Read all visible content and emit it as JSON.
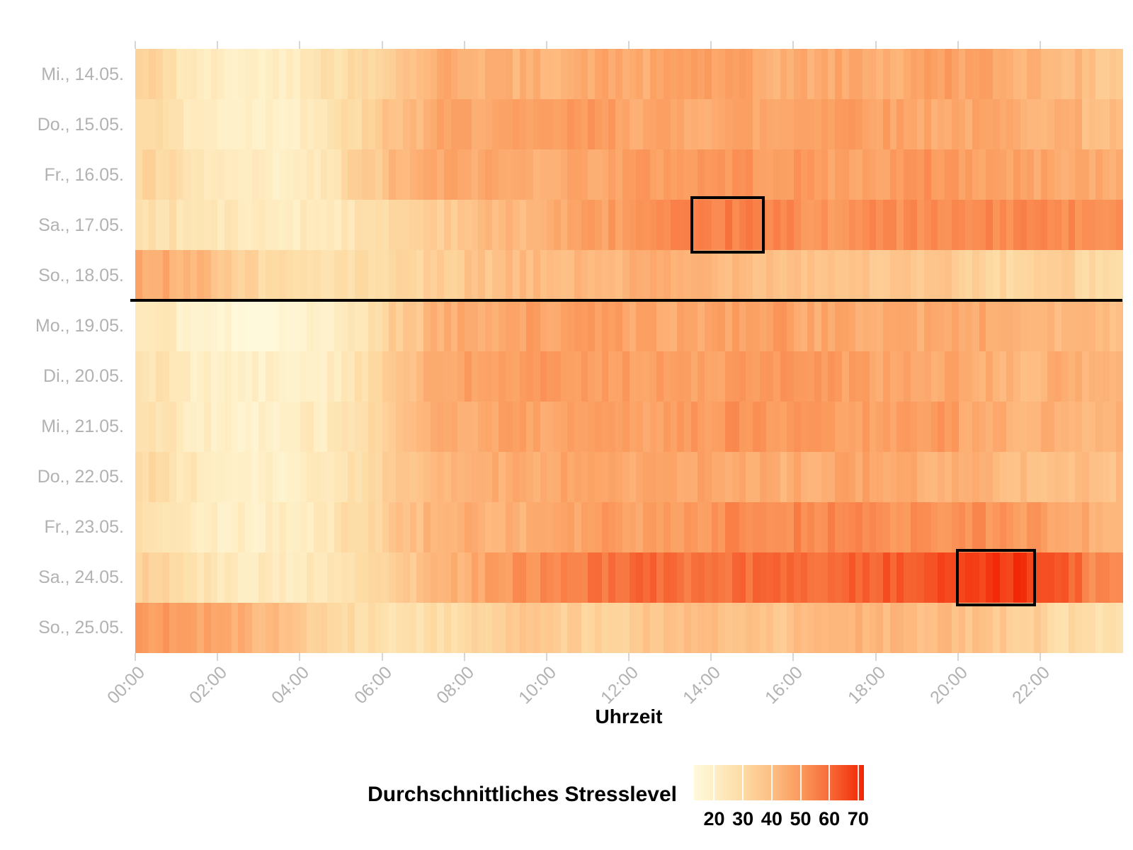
{
  "chart_data": {
    "type": "heatmap",
    "xlabel": "Uhrzeit",
    "legend_title": "Durchschnittliches Stresslevel",
    "x_ticks": [
      "00:00",
      "02:00",
      "04:00",
      "06:00",
      "08:00",
      "10:00",
      "12:00",
      "14:00",
      "16:00",
      "18:00",
      "20:00",
      "22:00"
    ],
    "days": [
      "Mi., 14.05.",
      "Do., 15.05.",
      "Fr., 16.05.",
      "Sa., 17.05.",
      "So., 18.05.",
      "Mo., 19.05.",
      "Di., 20.05.",
      "Mi., 21.05.",
      "Do., 22.05.",
      "Fr., 23.05.",
      "Sa., 24.05.",
      "So., 25.05."
    ],
    "hours_per_row": 24,
    "value_range": [
      13,
      72
    ],
    "legend_ticks": [
      20,
      30,
      40,
      50,
      60,
      70
    ],
    "colorscale": [
      {
        "value": 13,
        "color": "#FFF9DC"
      },
      {
        "value": 20,
        "color": "#FEEFC6"
      },
      {
        "value": 30,
        "color": "#FDDBA4"
      },
      {
        "value": 40,
        "color": "#FDBE84"
      },
      {
        "value": 50,
        "color": "#FB9A5D"
      },
      {
        "value": 60,
        "color": "#F76B38"
      },
      {
        "value": 70,
        "color": "#F3300C"
      },
      {
        "value": 72,
        "color": "#F22405"
      }
    ],
    "values": [
      [
        32,
        22,
        20,
        21,
        28,
        30,
        38,
        45,
        44,
        43,
        44,
        46,
        45,
        49,
        47,
        44,
        45,
        46,
        44,
        49,
        47,
        44,
        42,
        37
      ],
      [
        30,
        22,
        20,
        20,
        24,
        31,
        40,
        46,
        47,
        46,
        49,
        49,
        46,
        46,
        47,
        46,
        49,
        50,
        47,
        46,
        46,
        45,
        44,
        40
      ],
      [
        31,
        24,
        21,
        19,
        23,
        34,
        42,
        46,
        46,
        45,
        46,
        47,
        49,
        50,
        51,
        50,
        49,
        47,
        49,
        51,
        48,
        47,
        46,
        45
      ],
      [
        28,
        25,
        23,
        22,
        23,
        26,
        32,
        36,
        40,
        42,
        46,
        49,
        51,
        53,
        56,
        54,
        51,
        52,
        53,
        52,
        53,
        54,
        53,
        51
      ],
      [
        46,
        43,
        34,
        29,
        28,
        28,
        30,
        34,
        38,
        40,
        41,
        42,
        44,
        43,
        42,
        40,
        39,
        38,
        36,
        37,
        33,
        31,
        34,
        29
      ],
      [
        24,
        17,
        15,
        15,
        18,
        26,
        36,
        44,
        46,
        48,
        47,
        49,
        46,
        46,
        48,
        49,
        46,
        45,
        46,
        45,
        46,
        43,
        42,
        40
      ],
      [
        26,
        20,
        19,
        19,
        21,
        28,
        38,
        45,
        48,
        49,
        48,
        50,
        48,
        47,
        49,
        50,
        49,
        48,
        46,
        46,
        45,
        41,
        44,
        43
      ],
      [
        27,
        21,
        19,
        19,
        22,
        29,
        38,
        44,
        46,
        47,
        46,
        47,
        48,
        50,
        51,
        50,
        49,
        48,
        47,
        50,
        46,
        44,
        43,
        42
      ],
      [
        30,
        23,
        20,
        20,
        22,
        28,
        37,
        43,
        45,
        45,
        47,
        46,
        45,
        47,
        45,
        44,
        45,
        47,
        45,
        44,
        43,
        41,
        40,
        39
      ],
      [
        29,
        22,
        20,
        20,
        23,
        30,
        38,
        43,
        44,
        44,
        46,
        49,
        47,
        50,
        53,
        53,
        54,
        53,
        52,
        51,
        52,
        50,
        47,
        44
      ],
      [
        33,
        26,
        23,
        22,
        24,
        29,
        36,
        42,
        47,
        52,
        55,
        58,
        60,
        57,
        59,
        61,
        60,
        62,
        63,
        64,
        68,
        69,
        63,
        52
      ],
      [
        50,
        47,
        44,
        40,
        34,
        29,
        27,
        29,
        33,
        36,
        34,
        32,
        37,
        40,
        39,
        37,
        40,
        43,
        42,
        40,
        38,
        35,
        30,
        26
      ]
    ],
    "annotations": {
      "separator_after_day": "So., 18.05.",
      "separator_after_day_index": 4,
      "highlight_boxes": [
        {
          "day": "Sa., 17.05.",
          "day_index": 3,
          "hour_start": 13.5,
          "hour_end": 15.3
        },
        {
          "day": "Sa., 24.05.",
          "day_index": 10,
          "hour_start": 19.95,
          "hour_end": 21.9
        }
      ]
    }
  }
}
